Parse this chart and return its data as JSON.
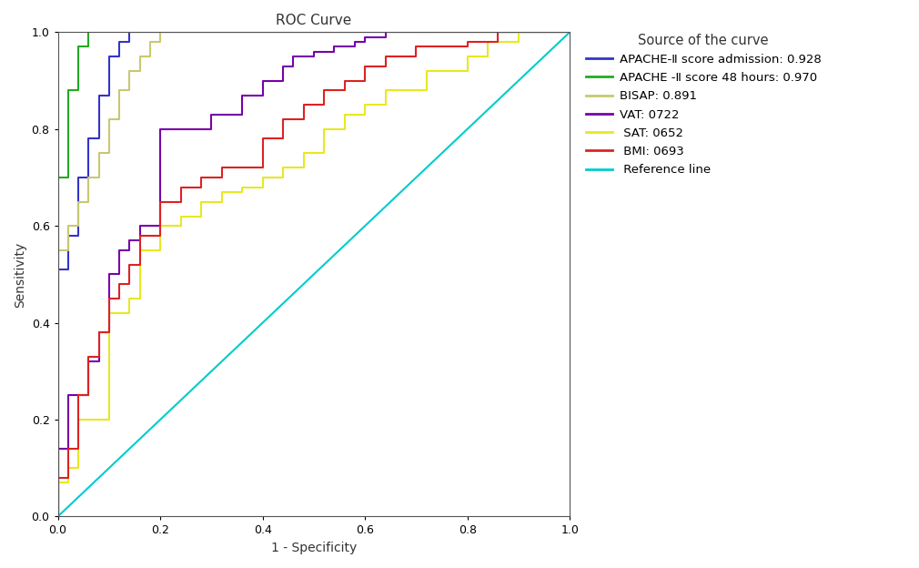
{
  "title": "ROC Curve",
  "xlabel": "1 - Specificity",
  "ylabel": "Sensitivity",
  "legend_title": "Source of the curve",
  "curves": {
    "apache_admission": {
      "label": "APACHE-Ⅱ score admission: 0.928",
      "color": "#3333cc",
      "x": [
        0.0,
        0.0,
        0.02,
        0.02,
        0.04,
        0.04,
        0.06,
        0.06,
        0.08,
        0.08,
        0.1,
        0.1,
        0.12,
        0.12,
        0.14,
        0.14,
        0.2,
        0.2,
        1.0
      ],
      "y": [
        0.0,
        0.51,
        0.51,
        0.58,
        0.58,
        0.7,
        0.7,
        0.78,
        0.78,
        0.87,
        0.87,
        0.95,
        0.95,
        0.98,
        0.98,
        1.0,
        1.0,
        1.0,
        1.0
      ]
    },
    "apache_48h": {
      "label": "APACHE -Ⅱ score 48 hours: 0.970",
      "color": "#22aa22",
      "x": [
        0.0,
        0.0,
        0.02,
        0.02,
        0.04,
        0.04,
        0.06,
        0.06,
        1.0
      ],
      "y": [
        0.0,
        0.7,
        0.7,
        0.88,
        0.88,
        0.97,
        0.97,
        1.0,
        1.0
      ]
    },
    "bisap": {
      "label": "BISAP: 0.891",
      "color": "#c8c870",
      "x": [
        0.0,
        0.0,
        0.02,
        0.02,
        0.04,
        0.04,
        0.06,
        0.06,
        0.08,
        0.08,
        0.1,
        0.1,
        0.12,
        0.12,
        0.14,
        0.14,
        0.16,
        0.16,
        0.18,
        0.18,
        0.2,
        0.2,
        1.0
      ],
      "y": [
        0.0,
        0.55,
        0.55,
        0.6,
        0.6,
        0.65,
        0.65,
        0.7,
        0.7,
        0.75,
        0.75,
        0.82,
        0.82,
        0.88,
        0.88,
        0.92,
        0.92,
        0.95,
        0.95,
        0.98,
        0.98,
        1.0,
        1.0
      ]
    },
    "vat": {
      "label": "VAT: 0722",
      "color": "#7700aa",
      "x": [
        0.0,
        0.0,
        0.02,
        0.02,
        0.06,
        0.06,
        0.08,
        0.08,
        0.1,
        0.1,
        0.12,
        0.12,
        0.14,
        0.14,
        0.16,
        0.16,
        0.2,
        0.2,
        0.3,
        0.3,
        0.36,
        0.36,
        0.4,
        0.4,
        0.44,
        0.44,
        0.46,
        0.46,
        0.5,
        0.5,
        0.54,
        0.54,
        0.58,
        0.58,
        0.6,
        0.6,
        0.64,
        0.64,
        0.7,
        0.7,
        1.0
      ],
      "y": [
        0.0,
        0.14,
        0.14,
        0.25,
        0.25,
        0.32,
        0.32,
        0.38,
        0.38,
        0.5,
        0.5,
        0.55,
        0.55,
        0.57,
        0.57,
        0.6,
        0.6,
        0.8,
        0.8,
        0.83,
        0.83,
        0.87,
        0.87,
        0.9,
        0.9,
        0.93,
        0.93,
        0.95,
        0.95,
        0.96,
        0.96,
        0.97,
        0.97,
        0.98,
        0.98,
        0.99,
        0.99,
        1.0,
        1.0,
        1.0,
        1.0
      ]
    },
    "sat": {
      "label": " SAT: 0652",
      "color": "#e8e820",
      "x": [
        0.0,
        0.0,
        0.02,
        0.02,
        0.04,
        0.04,
        0.1,
        0.1,
        0.14,
        0.14,
        0.16,
        0.16,
        0.2,
        0.2,
        0.24,
        0.24,
        0.28,
        0.28,
        0.32,
        0.32,
        0.36,
        0.36,
        0.4,
        0.4,
        0.44,
        0.44,
        0.48,
        0.48,
        0.52,
        0.52,
        0.56,
        0.56,
        0.6,
        0.6,
        0.64,
        0.64,
        0.72,
        0.72,
        0.8,
        0.8,
        0.84,
        0.84,
        0.9,
        0.9,
        1.0
      ],
      "y": [
        0.0,
        0.07,
        0.07,
        0.1,
        0.1,
        0.2,
        0.2,
        0.42,
        0.42,
        0.45,
        0.45,
        0.55,
        0.55,
        0.6,
        0.6,
        0.62,
        0.62,
        0.65,
        0.65,
        0.67,
        0.67,
        0.68,
        0.68,
        0.7,
        0.7,
        0.72,
        0.72,
        0.75,
        0.75,
        0.8,
        0.8,
        0.83,
        0.83,
        0.85,
        0.85,
        0.88,
        0.88,
        0.92,
        0.92,
        0.95,
        0.95,
        0.98,
        0.98,
        1.0,
        1.0
      ]
    },
    "bmi": {
      "label": " BMI: 0693",
      "color": "#dd2222",
      "x": [
        0.0,
        0.0,
        0.02,
        0.02,
        0.04,
        0.04,
        0.06,
        0.06,
        0.08,
        0.08,
        0.1,
        0.1,
        0.12,
        0.12,
        0.14,
        0.14,
        0.16,
        0.16,
        0.2,
        0.2,
        0.24,
        0.24,
        0.28,
        0.28,
        0.32,
        0.32,
        0.4,
        0.4,
        0.44,
        0.44,
        0.48,
        0.48,
        0.52,
        0.52,
        0.56,
        0.56,
        0.6,
        0.6,
        0.64,
        0.64,
        0.7,
        0.7,
        0.8,
        0.8,
        0.86,
        0.86,
        0.9,
        0.9,
        1.0
      ],
      "y": [
        0.0,
        0.08,
        0.08,
        0.14,
        0.14,
        0.25,
        0.25,
        0.33,
        0.33,
        0.38,
        0.38,
        0.45,
        0.45,
        0.48,
        0.48,
        0.52,
        0.52,
        0.58,
        0.58,
        0.65,
        0.65,
        0.68,
        0.68,
        0.7,
        0.7,
        0.72,
        0.72,
        0.78,
        0.78,
        0.82,
        0.82,
        0.85,
        0.85,
        0.88,
        0.88,
        0.9,
        0.9,
        0.93,
        0.93,
        0.95,
        0.95,
        0.97,
        0.97,
        0.98,
        0.98,
        1.0,
        1.0,
        1.0,
        1.0
      ]
    },
    "reference": {
      "label": " Reference line",
      "color": "#00cccc",
      "x": [
        0.0,
        1.0
      ],
      "y": [
        0.0,
        1.0
      ]
    }
  },
  "xlim": [
    0.0,
    1.0
  ],
  "ylim": [
    0.0,
    1.0
  ],
  "xticks": [
    0.0,
    0.2,
    0.4,
    0.6,
    0.8,
    1.0
  ],
  "yticks": [
    0.0,
    0.2,
    0.4,
    0.6,
    0.8,
    1.0
  ],
  "background_color": "#ffffff"
}
